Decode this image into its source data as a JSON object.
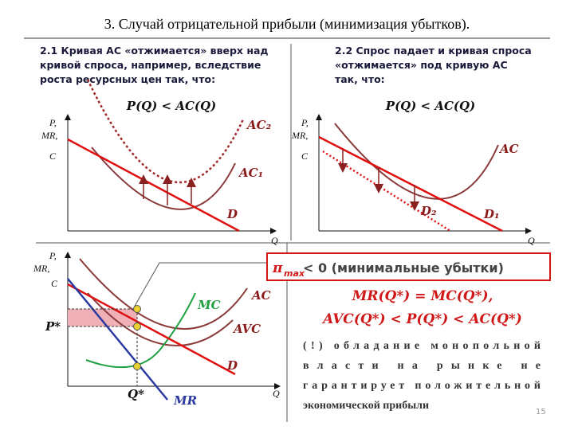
{
  "title": "3. Случай отрицательной прибыли (минимизация убытков).",
  "panel1": {
    "heading": [
      "2.1 Кривая AC «отжимается» вверх над",
      "кривой спроса, например, вследствие",
      "роста ресурсных цен так, что:"
    ],
    "formula": "P(Q) < AC(Q)",
    "y_axis": [
      "P,",
      "MR,",
      "C"
    ],
    "x_axis": "Q",
    "labels": {
      "ac2": "AC₂",
      "ac1": "AC₁",
      "d": "D"
    }
  },
  "panel2": {
    "heading": [
      "2.2 Спрос падает и кривая спроса",
      "«отжимается» под кривую AC",
      "так, что:"
    ],
    "formula": "P(Q) < AC(Q)",
    "y_axis": [
      "P,",
      "MR,",
      "C"
    ],
    "x_axis": "Q",
    "labels": {
      "ac": "AC",
      "d2": "D₂",
      "d1": "D₁"
    }
  },
  "panel3": {
    "y_axis": [
      "P,",
      "MR,",
      "C"
    ],
    "x_axis": "Q",
    "labels": {
      "mc": "MC",
      "ac": "AC",
      "avc": "AVC",
      "d": "D",
      "mr": "MR",
      "p_star": "P*",
      "q_star": "Q*"
    }
  },
  "box": {
    "symbol": "π",
    "sub": "max",
    "text": "< 0 (минимальные убытки)"
  },
  "conditions": [
    "MR(Q*) = MC(Q*),",
    "AVC(Q*) < P(Q*) < AC(Q*)"
  ],
  "note": [
    "(!)  обладание  монопольной",
    "власти   на   рынке   не",
    "гарантирует  положительной",
    "экономической прибыли"
  ],
  "page_number": "15"
}
